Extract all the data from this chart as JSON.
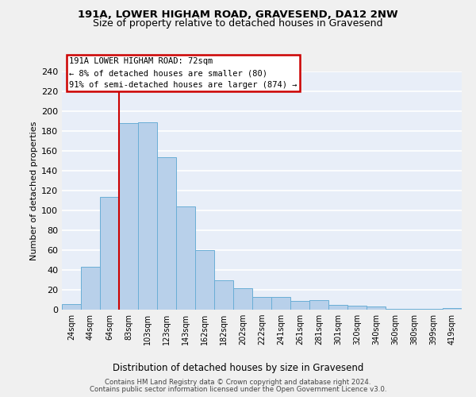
{
  "title1": "191A, LOWER HIGHAM ROAD, GRAVESEND, DA12 2NW",
  "title2": "Size of property relative to detached houses in Gravesend",
  "xlabel": "Distribution of detached houses by size in Gravesend",
  "ylabel": "Number of detached properties",
  "bar_labels": [
    "24sqm",
    "44sqm",
    "64sqm",
    "83sqm",
    "103sqm",
    "123sqm",
    "143sqm",
    "162sqm",
    "182sqm",
    "202sqm",
    "222sqm",
    "241sqm",
    "261sqm",
    "281sqm",
    "301sqm",
    "320sqm",
    "340sqm",
    "360sqm",
    "380sqm",
    "399sqm",
    "419sqm"
  ],
  "bar_values": [
    6,
    43,
    114,
    188,
    189,
    154,
    104,
    60,
    30,
    22,
    13,
    13,
    9,
    10,
    5,
    4,
    3,
    1,
    1,
    1,
    2
  ],
  "bar_color": "#b8d0ea",
  "bar_edge_color": "#6aaed6",
  "annotation_text": "191A LOWER HIGHAM ROAD: 72sqm\n← 8% of detached houses are smaller (80)\n91% of semi-detached houses are larger (874) →",
  "vline_x": 2.5,
  "vline_color": "#cc0000",
  "ylim": [
    0,
    240
  ],
  "yticks": [
    0,
    20,
    40,
    60,
    80,
    100,
    120,
    140,
    160,
    180,
    200,
    220,
    240
  ],
  "footer1": "Contains HM Land Registry data © Crown copyright and database right 2024.",
  "footer2": "Contains public sector information licensed under the Open Government Licence v3.0.",
  "bg_color": "#e8eef8",
  "grid_color": "#ffffff",
  "fig_bg": "#f0f0f0"
}
